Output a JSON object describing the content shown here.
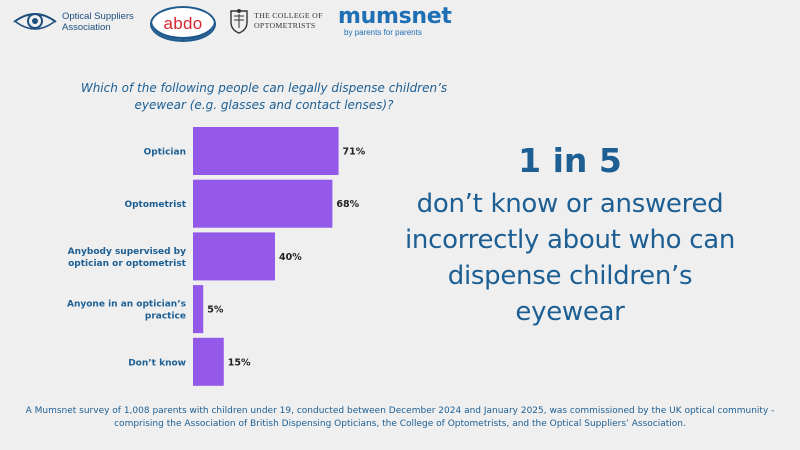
{
  "logos": {
    "osa": {
      "line1": "Optical Suppliers",
      "line2": "Association"
    },
    "abdo": {
      "text": "abdo"
    },
    "college": {
      "line1": "THE COLLEGE OF",
      "line2": "OPTOMETRISTS"
    },
    "mumsnet": {
      "name": "mumsnet",
      "tagline": "by parents for parents"
    }
  },
  "chart_data": {
    "type": "bar",
    "orientation": "horizontal",
    "title": "Which of the following people can legally dispense children’s eyewear (e.g. glasses and contact lenses)?",
    "categories": [
      [
        "Optician"
      ],
      [
        "Optometrist"
      ],
      [
        "Anybody supervised by",
        "optician or optometrist"
      ],
      [
        "Anyone in an optician’s",
        "practice"
      ],
      [
        "Don’t know"
      ]
    ],
    "values": [
      71,
      68,
      40,
      5,
      15
    ],
    "value_labels": [
      "71%",
      "68%",
      "40%",
      "5%",
      "15%"
    ],
    "unit": "%",
    "xlim": [
      0,
      100
    ],
    "grid": false,
    "bar_color": "#9459e8"
  },
  "stat": {
    "headline": "1 in 5",
    "body": "don’t know or answered incorrectly about who can dispense children’s eyewear"
  },
  "footnote": {
    "line1": "A Mumsnet survey of 1,008 parents with children under 19, conducted between December 2024 and January 2025, was commissioned by the UK optical community -",
    "line2": "comprising the Association of British Dispensing Opticians, the College of Optometrists, and the Optical Suppliers’ Association."
  }
}
